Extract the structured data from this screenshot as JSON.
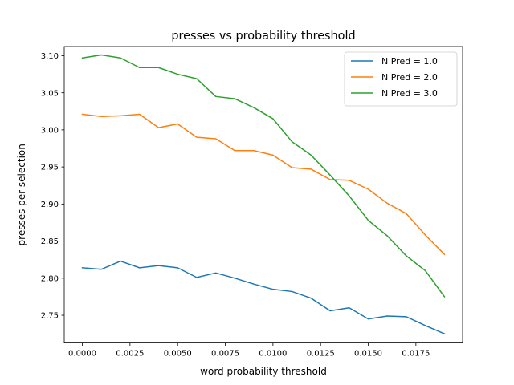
{
  "chart_data": {
    "type": "line",
    "title": "presses vs probability threshold",
    "xlabel": "word probability threshold",
    "ylabel": "presses per selection",
    "xlim": [
      -0.00095,
      0.01995
    ],
    "ylim": [
      2.7126,
      3.1124
    ],
    "xticks": [
      0.0,
      0.0025,
      0.005,
      0.0075,
      0.01,
      0.0125,
      0.015,
      0.0175
    ],
    "xtick_labels": [
      "0.0000",
      "0.0025",
      "0.0050",
      "0.0075",
      "0.0100",
      "0.0125",
      "0.0150",
      "0.0175"
    ],
    "yticks": [
      2.75,
      2.8,
      2.85,
      2.9,
      2.95,
      3.0,
      3.05,
      3.1
    ],
    "ytick_labels": [
      "2.75",
      "2.80",
      "2.85",
      "2.90",
      "2.95",
      "3.00",
      "3.05",
      "3.10"
    ],
    "grid": false,
    "legend_position": "top-right",
    "x": [
      0.0,
      0.001,
      0.002,
      0.003,
      0.004,
      0.005,
      0.006,
      0.007,
      0.008,
      0.009,
      0.01,
      0.011,
      0.012,
      0.013,
      0.014,
      0.015,
      0.016,
      0.017,
      0.018,
      0.019
    ],
    "series": [
      {
        "name": "N Pred = 1.0",
        "color": "#1f77b4",
        "values": [
          2.814,
          2.812,
          2.823,
          2.814,
          2.817,
          2.814,
          2.801,
          2.807,
          2.8,
          2.792,
          2.785,
          2.782,
          2.773,
          2.756,
          2.76,
          2.745,
          2.749,
          2.748,
          2.736,
          2.725
        ]
      },
      {
        "name": "N Pred = 2.0",
        "color": "#ff7f0e",
        "values": [
          3.021,
          3.018,
          3.019,
          3.021,
          3.003,
          3.008,
          2.99,
          2.988,
          2.972,
          2.972,
          2.966,
          2.949,
          2.947,
          2.933,
          2.932,
          2.92,
          2.901,
          2.887,
          2.858,
          2.832
        ]
      },
      {
        "name": "N Pred = 3.0",
        "color": "#2ca02c",
        "values": [
          3.097,
          3.101,
          3.097,
          3.084,
          3.084,
          3.075,
          3.069,
          3.045,
          3.042,
          3.03,
          3.015,
          2.984,
          2.966,
          2.939,
          2.911,
          2.878,
          2.857,
          2.83,
          2.81,
          2.775
        ]
      }
    ]
  }
}
